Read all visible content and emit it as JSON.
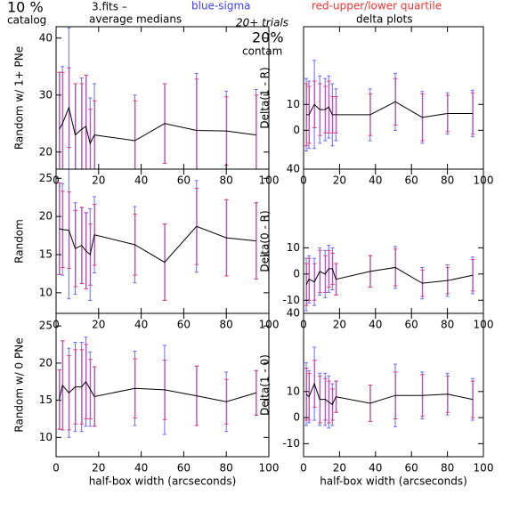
{
  "annotations": {
    "percent": "10 %",
    "catalog": "catalog",
    "file": "3.fits  –",
    "averages": "average medians",
    "sigma_note": "blue-sigma",
    "quartile_note": "red-upper/lower quartile",
    "trials": "20+ trials",
    "contam_percent": "20%",
    "contam": "contam",
    "delta": "delta plots"
  },
  "chart_data": [
    {
      "type": "errorbar",
      "y_label": "Random w/ 1+ PNe",
      "x": [
        1.5,
        3,
        6,
        9,
        12,
        14,
        16,
        18,
        37,
        51,
        66,
        80,
        94
      ],
      "values": [
        24,
        25,
        27.8,
        23,
        24,
        24.5,
        21.5,
        23,
        22,
        25,
        23.8,
        23.7,
        23
      ],
      "sigma": [
        10,
        10,
        14,
        9,
        9,
        9,
        8,
        9,
        8,
        7,
        10,
        7,
        8
      ],
      "quartile": [
        10,
        9,
        7,
        9,
        8,
        9,
        6,
        6,
        7,
        7,
        9,
        6,
        7
      ],
      "line_color": "#000000",
      "sigma_color": "#6a6aff",
      "quartile_color": "#e0407a",
      "xlim": [
        0,
        100
      ],
      "ylim": [
        17,
        42
      ],
      "xticks": [
        0,
        20,
        40,
        60,
        80,
        100
      ],
      "yticks": [
        20,
        30,
        40
      ]
    },
    {
      "type": "errorbar",
      "y_label": "Delta(1 - R)",
      "x": [
        1.5,
        3,
        6,
        9,
        12,
        14,
        16,
        18,
        37,
        51,
        66,
        80,
        94
      ],
      "values": [
        6,
        6,
        10,
        8,
        8,
        9,
        6,
        6,
        6,
        11,
        5,
        6.5,
        6.5
      ],
      "sigma": [
        14,
        13,
        17,
        13,
        12,
        12,
        12,
        10,
        10,
        11,
        10,
        8,
        9
      ],
      "quartile": [
        12,
        11,
        9,
        10,
        9,
        10,
        7,
        7,
        8,
        9,
        9,
        7,
        8
      ],
      "line_color": "#000000",
      "sigma_color": "#6a6aff",
      "quartile_color": "#e0407a",
      "xlim": [
        0,
        100
      ],
      "ylim": [
        -15,
        40
      ],
      "xticks": [
        0,
        20,
        40,
        60,
        80,
        100
      ],
      "yticks": [
        0,
        10
      ]
    },
    {
      "type": "errorbar",
      "y_label": "Random",
      "x": [
        1.5,
        3,
        6,
        9,
        12,
        14,
        16,
        18,
        37,
        51,
        66,
        80,
        94
      ],
      "values": [
        18.4,
        18.3,
        18.2,
        15.8,
        16.2,
        15.5,
        15,
        17.6,
        16.3,
        14,
        18.7,
        17.2,
        16.8
      ],
      "sigma": [
        6,
        6,
        9,
        6,
        5,
        5,
        6,
        5,
        5,
        5,
        6,
        5,
        5
      ],
      "quartile": [
        6,
        5,
        5,
        5,
        5,
        5,
        4,
        4,
        4,
        5,
        5,
        5,
        5
      ],
      "line_color": "#000000",
      "sigma_color": "#6a6aff",
      "quartile_color": "#e0407a",
      "xlim": [
        0,
        100
      ],
      "ylim": [
        7.3,
        26.2
      ],
      "xticks": [
        0,
        20,
        40,
        60,
        80,
        100
      ],
      "yticks": [
        10,
        15,
        20,
        25
      ]
    },
    {
      "type": "errorbar",
      "y_label": "Delta(0 - R)",
      "x": [
        1.5,
        3,
        6,
        9,
        12,
        14,
        16,
        18,
        37,
        51,
        66,
        80,
        94
      ],
      "values": [
        -4,
        -2,
        -3,
        1,
        0,
        2,
        2,
        -2,
        1,
        2.5,
        -3.5,
        -2.5,
        -0.5
      ],
      "sigma": [
        10,
        9,
        9,
        9,
        9,
        9,
        8,
        6,
        6,
        8,
        6,
        6,
        7
      ],
      "quartile": [
        8,
        8,
        7,
        8,
        7,
        7,
        6,
        6,
        6,
        7,
        5,
        5,
        6
      ],
      "line_color": "#000000",
      "sigma_color": "#6a6aff",
      "quartile_color": "#e0407a",
      "xlim": [
        0,
        100
      ],
      "ylim": [
        -15,
        40
      ],
      "xticks": [
        0,
        20,
        40,
        60,
        80,
        100
      ],
      "yticks": [
        -10,
        0,
        10,
        40
      ]
    },
    {
      "type": "errorbar",
      "y_label": "Random w/ 0 PNe",
      "x_label": "half-box width (arcseconds)",
      "x": [
        1.5,
        3,
        6,
        9,
        12,
        14,
        16,
        18,
        37,
        51,
        66,
        80,
        94
      ],
      "values": [
        15.1,
        17,
        16,
        16.8,
        16.8,
        17.5,
        16.5,
        15.5,
        16.6,
        16.4,
        15.6,
        14.8,
        16
      ],
      "sigma": [
        4,
        6,
        6,
        6,
        6,
        6,
        5,
        4,
        5,
        6,
        4,
        4,
        3
      ],
      "quartile": [
        4,
        6,
        5,
        5,
        5,
        5,
        4,
        4,
        4,
        4,
        4,
        3,
        3
      ],
      "line_color": "#000000",
      "sigma_color": "#6a6aff",
      "quartile_color": "#e0407a",
      "xlim": [
        0,
        100
      ],
      "ylim": [
        7.4,
        26.7
      ],
      "xticks": [
        0,
        20,
        40,
        60,
        80,
        100
      ],
      "yticks": [
        10,
        15,
        20,
        25
      ]
    },
    {
      "type": "errorbar",
      "y_label": "Delta(1 - 0)",
      "x_label": "half-box width (arcseconds)",
      "x": [
        1.5,
        3,
        6,
        9,
        12,
        14,
        16,
        18,
        37,
        51,
        66,
        80,
        94
      ],
      "values": [
        9,
        8,
        13,
        7,
        7,
        6,
        5,
        8,
        5.5,
        8.5,
        8.5,
        9,
        7
      ],
      "sigma": [
        12,
        10,
        14,
        10,
        10,
        10,
        8,
        6,
        7,
        12,
        9,
        8,
        8
      ],
      "quartile": [
        10,
        9,
        9,
        9,
        8,
        8,
        6,
        6,
        7,
        9,
        8,
        7,
        7
      ],
      "line_color": "#000000",
      "sigma_color": "#6a6aff",
      "quartile_color": "#e0407a",
      "xlim": [
        0,
        100
      ],
      "ylim": [
        -15,
        40
      ],
      "xticks": [
        0,
        20,
        40,
        60,
        80,
        100
      ],
      "yticks": [
        -10,
        0,
        10,
        40
      ]
    }
  ]
}
